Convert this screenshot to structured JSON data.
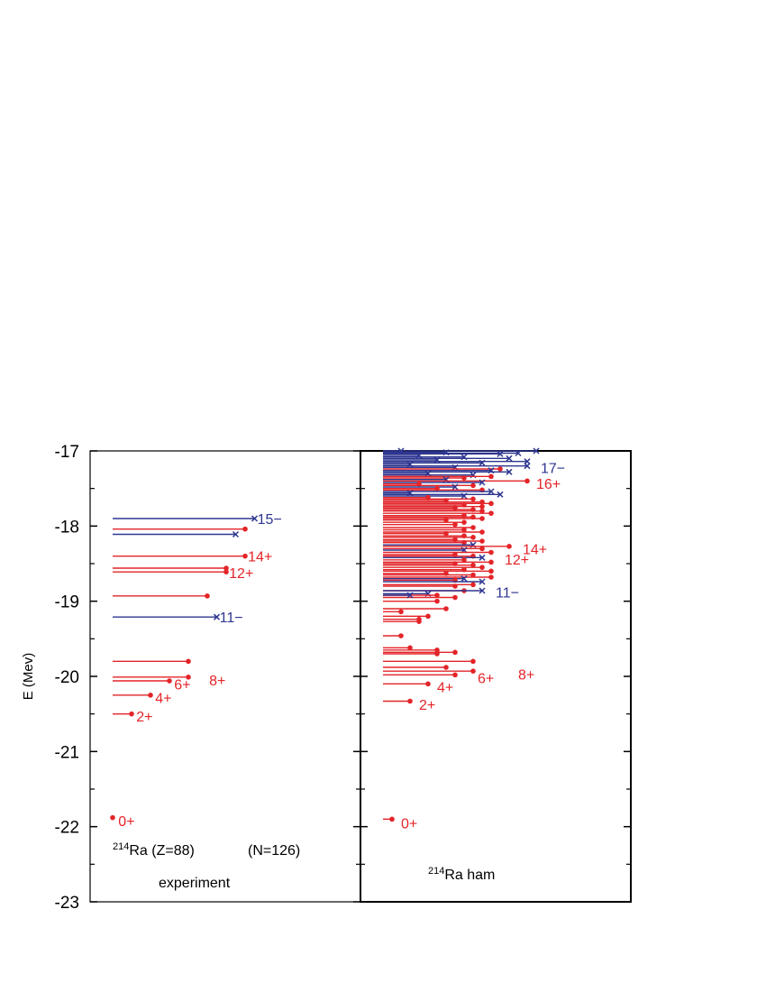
{
  "colors": {
    "positive": "#e32428",
    "negative": "#2e3690",
    "axis": "#000000"
  },
  "chart_data": {
    "type": "level-scheme",
    "ylabel": "E (Mev)",
    "ylim": [
      -23,
      -17
    ],
    "yticks": [
      -17,
      -18,
      -19,
      -20,
      -21,
      -22,
      -23
    ],
    "yticks_text": [
      "-17",
      "-18",
      "-19",
      "-20",
      "-21",
      "-22",
      "-23"
    ],
    "panels": [
      {
        "name": "experiment",
        "annot": {
          "pre": "214",
          "mid": "Ra   (Z=88)",
          "tail": "(N=126)"
        },
        "caption": "experiment",
        "levels": [
          {
            "E": -17.9,
            "J": 15,
            "parity": "-"
          },
          {
            "E": -18.04,
            "J": 14,
            "parity": "+"
          },
          {
            "E": -18.11,
            "J": 13,
            "parity": "-"
          },
          {
            "E": -18.4,
            "J": 14,
            "parity": "+"
          },
          {
            "E": -18.56,
            "J": 12,
            "parity": "+"
          },
          {
            "E": -18.61,
            "J": 12,
            "parity": "+"
          },
          {
            "E": -18.93,
            "J": 10,
            "parity": "+"
          },
          {
            "E": -19.21,
            "J": 11,
            "parity": "-"
          },
          {
            "E": -19.8,
            "J": 8,
            "parity": "+"
          },
          {
            "E": -20.01,
            "J": 8,
            "parity": "+"
          },
          {
            "E": -20.06,
            "J": 6,
            "parity": "+"
          },
          {
            "E": -20.25,
            "J": 4,
            "parity": "+"
          },
          {
            "E": -20.5,
            "J": 2,
            "parity": "+"
          },
          {
            "E": -21.88,
            "J": 0,
            "parity": "+"
          }
        ],
        "labels": [
          {
            "text": "15−",
            "E": -17.9,
            "J": 15.3,
            "parity": "-"
          },
          {
            "text": "14+",
            "E": -18.4,
            "J": 14.3,
            "parity": "+"
          },
          {
            "text": "12+",
            "E": -18.62,
            "J": 12.3,
            "parity": "+"
          },
          {
            "text": "11−",
            "E": -19.21,
            "J": 11.3,
            "parity": "-"
          },
          {
            "text": "6+",
            "E": -20.1,
            "J": 6.5,
            "parity": "+"
          },
          {
            "text": "8+",
            "E": -20.05,
            "J": 10.2,
            "parity": "+"
          },
          {
            "text": "4+",
            "E": -20.28,
            "J": 4.5,
            "parity": "+"
          },
          {
            "text": "2+",
            "E": -20.53,
            "J": 2.5,
            "parity": "+"
          },
          {
            "text": "0+",
            "E": -21.92,
            "J": 0.6,
            "parity": "+"
          }
        ]
      },
      {
        "name": "ham",
        "annot": {
          "pre": "214",
          "mid": "Ra ham",
          "tail": ""
        },
        "caption": "",
        "levels": [
          {
            "E": -17.0,
            "J": 2,
            "parity": "-"
          },
          {
            "E": -17.02,
            "J": 7,
            "parity": "-"
          },
          {
            "E": -17.04,
            "J": 13,
            "parity": "-"
          },
          {
            "E": -17.0,
            "J": 17,
            "parity": "-"
          },
          {
            "E": -17.03,
            "J": 15,
            "parity": "-"
          },
          {
            "E": -17.06,
            "J": 4,
            "parity": "-"
          },
          {
            "E": -17.08,
            "J": 9,
            "parity": "-"
          },
          {
            "E": -17.1,
            "J": 14,
            "parity": "-"
          },
          {
            "E": -17.12,
            "J": 6,
            "parity": "-"
          },
          {
            "E": -17.14,
            "J": 16,
            "parity": "-"
          },
          {
            "E": -17.16,
            "J": 11,
            "parity": "-"
          },
          {
            "E": -17.18,
            "J": 3,
            "parity": "-"
          },
          {
            "E": -17.2,
            "J": 16,
            "parity": "-"
          },
          {
            "E": -17.22,
            "J": 8,
            "parity": "-"
          },
          {
            "E": -17.24,
            "J": 13,
            "parity": "+"
          },
          {
            "E": -17.26,
            "J": 12,
            "parity": "-"
          },
          {
            "E": -17.28,
            "J": 14,
            "parity": "-"
          },
          {
            "E": -17.3,
            "J": 5,
            "parity": "-"
          },
          {
            "E": -17.32,
            "J": 10,
            "parity": "-"
          },
          {
            "E": -17.34,
            "J": 12,
            "parity": "+"
          },
          {
            "E": -17.36,
            "J": 9,
            "parity": "+"
          },
          {
            "E": -17.38,
            "J": 7,
            "parity": "-"
          },
          {
            "E": -17.4,
            "J": 16,
            "parity": "+"
          },
          {
            "E": -17.42,
            "J": 11,
            "parity": "-"
          },
          {
            "E": -17.44,
            "J": 4,
            "parity": "+"
          },
          {
            "E": -17.46,
            "J": 10,
            "parity": "+"
          },
          {
            "E": -17.48,
            "J": 8,
            "parity": "-"
          },
          {
            "E": -17.5,
            "J": 6,
            "parity": "+"
          },
          {
            "E": -17.52,
            "J": 11,
            "parity": "+"
          },
          {
            "E": -17.54,
            "J": 12,
            "parity": "-"
          },
          {
            "E": -17.56,
            "J": 3,
            "parity": "-"
          },
          {
            "E": -17.58,
            "J": 13,
            "parity": "-"
          },
          {
            "E": -17.6,
            "J": 9,
            "parity": "-"
          },
          {
            "E": -17.62,
            "J": 5,
            "parity": "+"
          },
          {
            "E": -17.64,
            "J": 10,
            "parity": "+"
          },
          {
            "E": -17.66,
            "J": 7,
            "parity": "+"
          },
          {
            "E": -17.68,
            "J": 11,
            "parity": "+"
          },
          {
            "E": -17.7,
            "J": 12,
            "parity": "+"
          },
          {
            "E": -17.72,
            "J": 9,
            "parity": "+"
          },
          {
            "E": -17.74,
            "J": 11,
            "parity": "+"
          },
          {
            "E": -17.76,
            "J": 8,
            "parity": "+"
          },
          {
            "E": -17.78,
            "J": 10,
            "parity": "+"
          },
          {
            "E": -17.8,
            "J": 11,
            "parity": "+"
          },
          {
            "E": -17.83,
            "J": 12,
            "parity": "+"
          },
          {
            "E": -17.86,
            "J": 9,
            "parity": "+"
          },
          {
            "E": -17.88,
            "J": 10,
            "parity": "+"
          },
          {
            "E": -17.9,
            "J": 11,
            "parity": "+"
          },
          {
            "E": -17.92,
            "J": 7,
            "parity": "+"
          },
          {
            "E": -17.95,
            "J": 9,
            "parity": "+"
          },
          {
            "E": -17.98,
            "J": 8,
            "parity": "+"
          },
          {
            "E": -18.02,
            "J": 10,
            "parity": "+"
          },
          {
            "E": -18.05,
            "J": 9,
            "parity": "+"
          },
          {
            "E": -18.08,
            "J": 11,
            "parity": "+"
          },
          {
            "E": -18.1,
            "J": 7,
            "parity": "+"
          },
          {
            "E": -18.13,
            "J": 9,
            "parity": "+"
          },
          {
            "E": -18.15,
            "J": 10,
            "parity": "+"
          },
          {
            "E": -18.18,
            "J": 8,
            "parity": "+"
          },
          {
            "E": -18.2,
            "J": 11,
            "parity": "+"
          },
          {
            "E": -18.22,
            "J": 9,
            "parity": "+"
          },
          {
            "E": -18.25,
            "J": 10,
            "parity": "-"
          },
          {
            "E": -18.27,
            "J": 14,
            "parity": "+"
          },
          {
            "E": -18.3,
            "J": 11,
            "parity": "+"
          },
          {
            "E": -18.32,
            "J": 9,
            "parity": "-"
          },
          {
            "E": -18.35,
            "J": 12,
            "parity": "+"
          },
          {
            "E": -18.38,
            "J": 8,
            "parity": "+"
          },
          {
            "E": -18.4,
            "J": 10,
            "parity": "+"
          },
          {
            "E": -18.42,
            "J": 11,
            "parity": "-"
          },
          {
            "E": -18.45,
            "J": 9,
            "parity": "+"
          },
          {
            "E": -18.48,
            "J": 12,
            "parity": "+"
          },
          {
            "E": -18.5,
            "J": 8,
            "parity": "+"
          },
          {
            "E": -18.52,
            "J": 10,
            "parity": "+"
          },
          {
            "E": -18.55,
            "J": 11,
            "parity": "+"
          },
          {
            "E": -18.58,
            "J": 9,
            "parity": "+"
          },
          {
            "E": -18.6,
            "J": 12,
            "parity": "+"
          },
          {
            "E": -18.63,
            "J": 7,
            "parity": "+"
          },
          {
            "E": -18.65,
            "J": 10,
            "parity": "+"
          },
          {
            "E": -18.68,
            "J": 12,
            "parity": "+"
          },
          {
            "E": -18.7,
            "J": 9,
            "parity": "-"
          },
          {
            "E": -18.72,
            "J": 8,
            "parity": "+"
          },
          {
            "E": -18.74,
            "J": 11,
            "parity": "-"
          },
          {
            "E": -18.78,
            "J": 10,
            "parity": "+"
          },
          {
            "E": -18.8,
            "J": 8,
            "parity": "+"
          },
          {
            "E": -18.86,
            "J": 9,
            "parity": "+"
          },
          {
            "E": -18.86,
            "J": 11,
            "parity": "-"
          },
          {
            "E": -18.9,
            "J": 5,
            "parity": "-"
          },
          {
            "E": -18.92,
            "J": 6,
            "parity": "+"
          },
          {
            "E": -18.95,
            "J": 8,
            "parity": "+"
          },
          {
            "E": -18.92,
            "J": 3,
            "parity": "-"
          },
          {
            "E": -19.0,
            "J": 6,
            "parity": "+"
          },
          {
            "E": -19.1,
            "J": 7,
            "parity": "+"
          },
          {
            "E": -19.14,
            "J": 2,
            "parity": "+"
          },
          {
            "E": -19.2,
            "J": 5,
            "parity": "+"
          },
          {
            "E": -19.24,
            "J": 4,
            "parity": "+"
          },
          {
            "E": -19.27,
            "J": 4,
            "parity": "+"
          },
          {
            "E": -19.46,
            "J": 2,
            "parity": "+"
          },
          {
            "E": -19.62,
            "J": 3,
            "parity": "+"
          },
          {
            "E": -19.65,
            "J": 6,
            "parity": "+"
          },
          {
            "E": -19.68,
            "J": 8,
            "parity": "+"
          },
          {
            "E": -19.7,
            "J": 6,
            "parity": "+"
          },
          {
            "E": -19.8,
            "J": 10,
            "parity": "+"
          },
          {
            "E": -19.88,
            "J": 7,
            "parity": "+"
          },
          {
            "E": -19.93,
            "J": 10,
            "parity": "+"
          },
          {
            "E": -19.98,
            "J": 8,
            "parity": "+"
          },
          {
            "E": -20.1,
            "J": 5,
            "parity": "+"
          },
          {
            "E": -20.33,
            "J": 3,
            "parity": "+"
          },
          {
            "E": -21.9,
            "J": 1,
            "parity": "+"
          }
        ],
        "labels": [
          {
            "text": "17−",
            "E": -17.22,
            "J": 17.5,
            "parity": "-"
          },
          {
            "text": "16+",
            "E": -17.43,
            "J": 17.0,
            "parity": "+"
          },
          {
            "text": "14+",
            "E": -18.3,
            "J": 15.5,
            "parity": "+"
          },
          {
            "text": "12+",
            "E": -18.44,
            "J": 13.5,
            "parity": "+"
          },
          {
            "text": "11−",
            "E": -18.88,
            "J": 12.5,
            "parity": "-"
          },
          {
            "text": "6+",
            "E": -20.02,
            "J": 10.5,
            "parity": "+"
          },
          {
            "text": "8+",
            "E": -19.97,
            "J": 15.0,
            "parity": "+"
          },
          {
            "text": "4+",
            "E": -20.14,
            "J": 6.0,
            "parity": "+"
          },
          {
            "text": "2+",
            "E": -20.37,
            "J": 4.0,
            "parity": "+"
          },
          {
            "text": "0+",
            "E": -21.95,
            "J": 2.0,
            "parity": "+"
          }
        ]
      }
    ]
  }
}
